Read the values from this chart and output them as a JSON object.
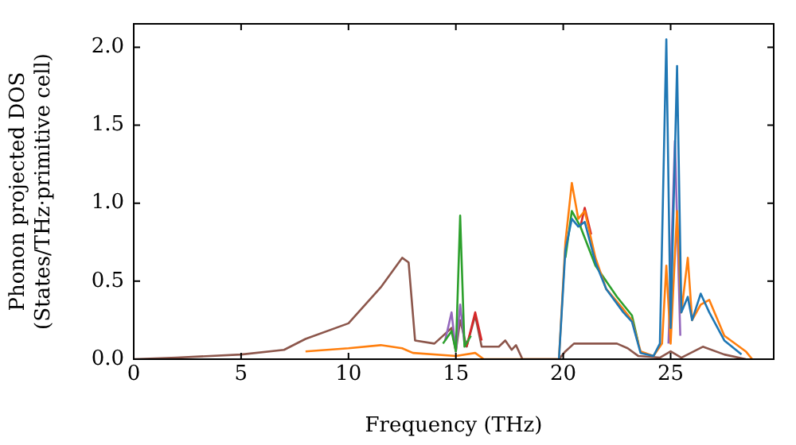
{
  "chart_data": {
    "type": "line",
    "xlabel": "Frequency (THz)",
    "ylabel": "Phonon projected DOS\n(States/THz·primitive cell)",
    "xlim": [
      0,
      29.8
    ],
    "ylim": [
      0,
      2.15
    ],
    "xticks": [
      0,
      5,
      10,
      15,
      20,
      25
    ],
    "yticks": [
      {
        "value": 0,
        "label": "0.0"
      },
      {
        "value": 0.5,
        "label": "0.5"
      },
      {
        "value": 1,
        "label": "1.0"
      },
      {
        "value": 1.5,
        "label": "1.5"
      },
      {
        "value": 2,
        "label": "2.0"
      }
    ],
    "grid": false,
    "legend": false,
    "marker": "none",
    "line_style": "solid",
    "series": [
      {
        "color": "#1f77b4",
        "x": [
          19.8,
          20.1,
          20.4,
          20.7,
          21,
          21.5,
          22,
          22.8,
          23.2,
          23.6,
          24.2,
          24.5,
          24.8,
          25.0,
          25.3,
          25.5,
          25.8,
          26,
          26.4,
          26.8,
          27.5,
          28.3
        ],
        "values": [
          0,
          0.7,
          0.9,
          0.85,
          0.88,
          0.62,
          0.45,
          0.3,
          0.24,
          0.04,
          0.02,
          0.1,
          2.05,
          0.2,
          1.88,
          0.3,
          0.4,
          0.25,
          0.42,
          0.3,
          0.12,
          0.03
        ]
      },
      {
        "color": "#ff7f0e",
        "x": [
          8,
          10,
          11.5,
          12.5,
          13,
          15,
          15.9,
          16.3,
          19.8,
          20.1,
          20.4,
          20.7,
          21,
          21.5,
          22,
          22.8,
          23.2,
          23.6,
          24.2,
          24.6,
          24.8,
          25.0,
          25.3,
          25.5,
          25.8,
          26,
          26.4,
          26.8,
          27.5,
          28.5,
          28.8
        ],
        "values": [
          0.05,
          0.07,
          0.09,
          0.07,
          0.04,
          0.02,
          0.04,
          0,
          0,
          0.75,
          1.13,
          0.9,
          0.95,
          0.65,
          0.45,
          0.32,
          0.25,
          0.05,
          0.02,
          0.1,
          0.6,
          0.1,
          0.95,
          0.3,
          0.65,
          0.25,
          0.35,
          0.38,
          0.15,
          0.05,
          0
        ]
      },
      {
        "color": "#2ca02c",
        "x": [
          14.4,
          14.8,
          15.0,
          15.2,
          15.4,
          15.7,
          null,
          20.1,
          20.4,
          20.8,
          21.5,
          22.5,
          23.2,
          23.5
        ],
        "values": [
          0.1,
          0.18,
          0.05,
          0.92,
          0.08,
          0.15,
          null,
          0.65,
          0.95,
          0.85,
          0.6,
          0.4,
          0.28,
          0.1
        ]
      },
      {
        "color": "#d62728",
        "x": [
          15.5,
          15.9,
          16.2,
          null,
          20.8,
          21,
          21.3
        ],
        "values": [
          0.08,
          0.3,
          0.12,
          null,
          0.85,
          0.97,
          0.8
        ]
      },
      {
        "color": "#9467bd",
        "x": [
          14.5,
          14.8,
          15.0,
          15.2,
          15.4,
          null,
          24.9,
          25.2,
          25.45
        ],
        "values": [
          0.12,
          0.3,
          0.05,
          0.35,
          0.1,
          null,
          0.1,
          1.4,
          0.15
        ]
      },
      {
        "color": "#8c564b",
        "x": [
          0,
          2,
          5,
          7,
          8,
          10,
          11.5,
          12.5,
          12.8,
          13.1,
          14,
          14.8,
          15.0,
          15.2,
          15.5,
          15.9,
          16.2,
          17,
          17.3,
          17.6,
          17.8,
          18.1,
          19.8,
          20.1,
          20.5,
          21,
          22.5,
          23,
          23.5,
          24.5,
          25,
          25.5,
          26.5,
          27.5,
          28.5
        ],
        "values": [
          0,
          0.01,
          0.03,
          0.06,
          0.13,
          0.23,
          0.46,
          0.65,
          0.62,
          0.12,
          0.1,
          0.2,
          0.05,
          0.25,
          0.08,
          0.28,
          0.08,
          0.08,
          0.12,
          0.06,
          0.09,
          0,
          0,
          0.05,
          0.1,
          0.1,
          0.1,
          0.07,
          0.02,
          0.01,
          0.05,
          0.01,
          0.08,
          0.03,
          0
        ]
      }
    ]
  }
}
